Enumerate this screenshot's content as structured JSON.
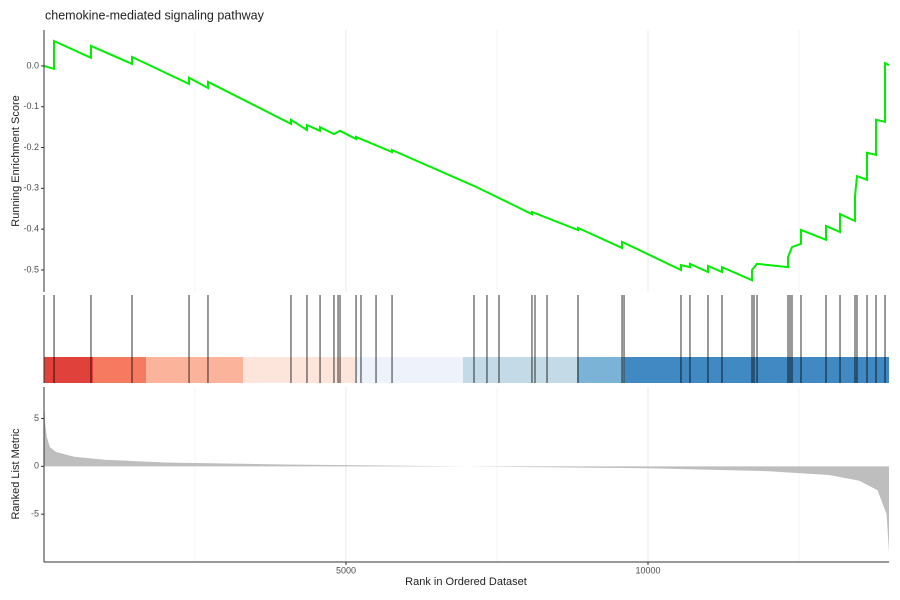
{
  "chart_data": [
    {
      "type": "line",
      "title": "chemokine-mediated signaling pathway",
      "ylabel": "Running Enrichment Score",
      "x": [
        0,
        166,
        166,
        778,
        778,
        1457,
        1457,
        2401,
        2401,
        2715,
        2715,
        4089,
        4089,
        4354,
        4354,
        4570,
        4570,
        4801,
        4901,
        5166,
        5166,
        5762,
        5762,
        7119,
        8079,
        8079,
        8841,
        8841,
        9570,
        9570,
        10546,
        10546,
        10695,
        10695,
        10993,
        10993,
        11225,
        11225,
        11722,
        11722,
        11805,
        12318,
        12318,
        12384,
        12533,
        12533,
        12947,
        12947,
        13179,
        13179,
        13427,
        13427,
        13460,
        13626,
        13626,
        13775,
        13775,
        13924,
        13924,
        13990
      ],
      "values": [
        0,
        -0.007,
        0.061,
        0.02,
        0.049,
        0.005,
        0.022,
        -0.044,
        -0.029,
        -0.054,
        -0.039,
        -0.142,
        -0.132,
        -0.157,
        -0.145,
        -0.159,
        -0.15,
        -0.167,
        -0.159,
        -0.179,
        -0.174,
        -0.211,
        -0.206,
        -0.294,
        -0.363,
        -0.358,
        -0.402,
        -0.397,
        -0.446,
        -0.431,
        -0.5,
        -0.488,
        -0.493,
        -0.485,
        -0.505,
        -0.49,
        -0.505,
        -0.493,
        -0.525,
        -0.5,
        -0.485,
        -0.493,
        -0.468,
        -0.444,
        -0.436,
        -0.402,
        -0.426,
        -0.392,
        -0.407,
        -0.363,
        -0.38,
        -0.319,
        -0.27,
        -0.279,
        -0.213,
        -0.218,
        -0.132,
        -0.137,
        0.007,
        0.002
      ],
      "color": "#00ee00",
      "xlim": [
        0,
        13990
      ],
      "ylim": [
        -0.554,
        0.088
      ],
      "yticks": [
        {
          "value": 0,
          "label": "0.0"
        },
        -0.1,
        -0.2,
        -0.3,
        -0.4,
        -0.5
      ],
      "xgrid": [
        2500,
        5000,
        7500,
        10000,
        12500
      ]
    },
    {
      "type": "rug",
      "xlim": [
        0,
        13990
      ],
      "hits": [
        166,
        778,
        1457,
        2401,
        2715,
        4089,
        4354,
        4570,
        4801,
        4868,
        4901,
        5166,
        5248,
        5497,
        5762,
        7119,
        7334,
        7533,
        8079,
        8129,
        8328,
        8841,
        9570,
        9603,
        10546,
        10695,
        10993,
        11225,
        11722,
        11755,
        11805,
        12318,
        12351,
        12384,
        12533,
        12947,
        13179,
        13427,
        13460,
        13626,
        13775,
        13924
      ],
      "color_bins": [
        0,
        811,
        1689,
        3295,
        5166,
        6937,
        8825,
        9619,
        13990
      ],
      "colors": [
        "#e0413a",
        "#f57a60",
        "#fcb39c",
        "#fde5dc",
        "#eef3fb",
        "#c4dbe7",
        "#7ab3d6",
        "#4189c2"
      ]
    },
    {
      "type": "area",
      "xlabel": "Rank in Ordered Dataset",
      "ylabel": "Ranked List Metric",
      "x": [
        0,
        20,
        50,
        100,
        200,
        500,
        1000,
        2000,
        4000,
        7000,
        10000,
        12000,
        13000,
        13500,
        13800,
        13950,
        13990
      ],
      "values": [
        7,
        4.5,
        3,
        2,
        1.5,
        1,
        0.7,
        0.4,
        0.2,
        0,
        -0.2,
        -0.5,
        -0.9,
        -1.5,
        -2.5,
        -5,
        -9
      ],
      "color": "#bebebe",
      "xlim": [
        0,
        13990
      ],
      "ylim": [
        -10,
        8.3
      ],
      "xticks": [
        5000,
        10000
      ],
      "yticks": [
        5,
        0,
        -5
      ],
      "xgrid": [
        2500,
        5000,
        7500,
        10000,
        12500
      ]
    }
  ]
}
